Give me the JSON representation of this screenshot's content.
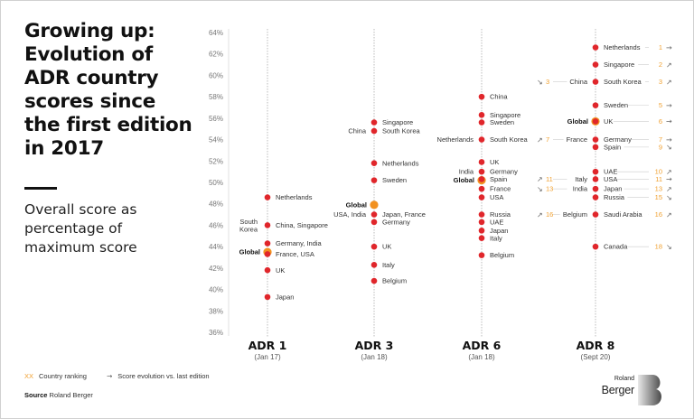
{
  "title": "Growing up: Evolution of ADR country scores since the first edition in 2017",
  "subtitle": "Overall score as percentage of maximum score",
  "legend": {
    "rank_marker": "XX",
    "rank_label": "Country ranking",
    "arrow_marker": "→",
    "arrow_label": "Score evolution vs. last edition"
  },
  "source": {
    "label": "Source",
    "value": "Roland Berger"
  },
  "logo": {
    "line1": "Roland",
    "line2": "Berger"
  },
  "colors": {
    "dot": "#e0262b",
    "global": "#f29120",
    "rank": "#f0a030",
    "axis": "#999999"
  },
  "chart_data": {
    "type": "scatter",
    "title": "Growing up: Evolution of ADR country scores since the first edition in 2017",
    "ylabel": "Overall score as percentage of maximum score",
    "ylim": [
      36,
      64
    ],
    "yticks": [
      "64%",
      "62%",
      "60%",
      "58%",
      "56%",
      "54%",
      "52%",
      "50%",
      "48%",
      "46%",
      "44%",
      "42%",
      "40%",
      "38%",
      "36%"
    ],
    "ytick_values": [
      64,
      62,
      60,
      58,
      56,
      54,
      52,
      50,
      48,
      46,
      44,
      42,
      40,
      38,
      36
    ],
    "grid": false,
    "columns": [
      {
        "edition": "ADR 1",
        "date": "(Jan 17)",
        "points": [
          {
            "right": "Netherlands",
            "value": 48.6
          },
          {
            "right": "China, Singapore",
            "left": "South Korea",
            "value": 46.0
          },
          {
            "right": "Germany, India",
            "value": 44.3
          },
          {
            "left": "Global",
            "global": true,
            "value": 43.5
          },
          {
            "right": "France, USA",
            "value": 43.3
          },
          {
            "right": "UK",
            "value": 41.8
          },
          {
            "right": "Japan",
            "value": 39.3
          }
        ]
      },
      {
        "edition": "ADR 3",
        "date": "(Jan 18)",
        "points": [
          {
            "right": "Singapore",
            "value": 55.6
          },
          {
            "right": "South Korea",
            "left": "China",
            "value": 54.8
          },
          {
            "right": "Netherlands",
            "value": 51.8
          },
          {
            "right": "Sweden",
            "value": 50.2
          },
          {
            "left": "Global",
            "global": true,
            "value": 47.9
          },
          {
            "right": "Japan, France",
            "left": "USA, India",
            "value": 47.0
          },
          {
            "right": "Germany",
            "value": 46.3
          },
          {
            "right": "UK",
            "value": 44.0
          },
          {
            "right": "Italy",
            "value": 42.3
          },
          {
            "right": "Belgium",
            "value": 40.8
          }
        ]
      },
      {
        "edition": "ADR 6",
        "date": "(Jan 18)",
        "points": [
          {
            "right": "China",
            "value": 58.0
          },
          {
            "right": "Singapore",
            "value": 56.3
          },
          {
            "right": "Sweden",
            "value": 55.6
          },
          {
            "right": "South Korea",
            "left": "Netherlands",
            "value": 54.0
          },
          {
            "right": "UK",
            "value": 51.9
          },
          {
            "right": "Germany",
            "left": "India",
            "value": 51.0
          },
          {
            "left": "Global",
            "global": true,
            "value": 50.2
          },
          {
            "right": "Spain",
            "value": 50.3
          },
          {
            "right": "France",
            "value": 49.4
          },
          {
            "right": "USA",
            "value": 48.6
          },
          {
            "right": "Russia",
            "value": 47.0
          },
          {
            "right": "UAE",
            "value": 46.3
          },
          {
            "right": "Japan",
            "value": 45.5
          },
          {
            "right": "Italy",
            "value": 44.8
          },
          {
            "right": "Belgium",
            "value": 43.2
          }
        ]
      },
      {
        "edition": "ADR 8",
        "date": "(Sept 20)",
        "points": [
          {
            "right": "Netherlands",
            "rank": "1",
            "trend": "→",
            "value": 62.6
          },
          {
            "right": "Singapore",
            "rank": "2",
            "trend": "↗",
            "value": 61.0
          },
          {
            "right": "South Korea",
            "rank": "3",
            "trend": "↗",
            "left": "China",
            "left_rank": "3",
            "left_trend": "↘",
            "value": 59.4
          },
          {
            "right": "Sweden",
            "rank": "5",
            "trend": "→",
            "value": 57.2
          },
          {
            "left": "Global",
            "global": true,
            "value": 55.7
          },
          {
            "right": "UK",
            "rank": "6",
            "trend": "→",
            "value": 55.7
          },
          {
            "right": "Germany",
            "rank": "7",
            "trend": "→",
            "left": "France",
            "left_rank": "7",
            "left_trend": "↗",
            "value": 54.0
          },
          {
            "right": "Spain",
            "rank": "9",
            "trend": "↘",
            "value": 53.3
          },
          {
            "right": "UAE",
            "rank": "10",
            "trend": "↗",
            "value": 51.0
          },
          {
            "right": "USA",
            "rank": "11",
            "trend": "→",
            "left": "Italy",
            "left_rank": "11",
            "left_trend": "↗",
            "value": 50.3
          },
          {
            "right": "Japan",
            "rank": "13",
            "trend": "↗",
            "left": "India",
            "left_rank": "13",
            "left_trend": "↘",
            "value": 49.4
          },
          {
            "right": "Russia",
            "rank": "15",
            "trend": "↘",
            "value": 48.6
          },
          {
            "right": "Saudi Arabia",
            "rank": "16",
            "trend": "↗",
            "left": "Belgium",
            "left_rank": "16",
            "left_trend": "↗",
            "value": 47.0
          },
          {
            "right": "Canada",
            "rank": "18",
            "trend": "↘",
            "value": 44.0
          }
        ]
      }
    ]
  }
}
